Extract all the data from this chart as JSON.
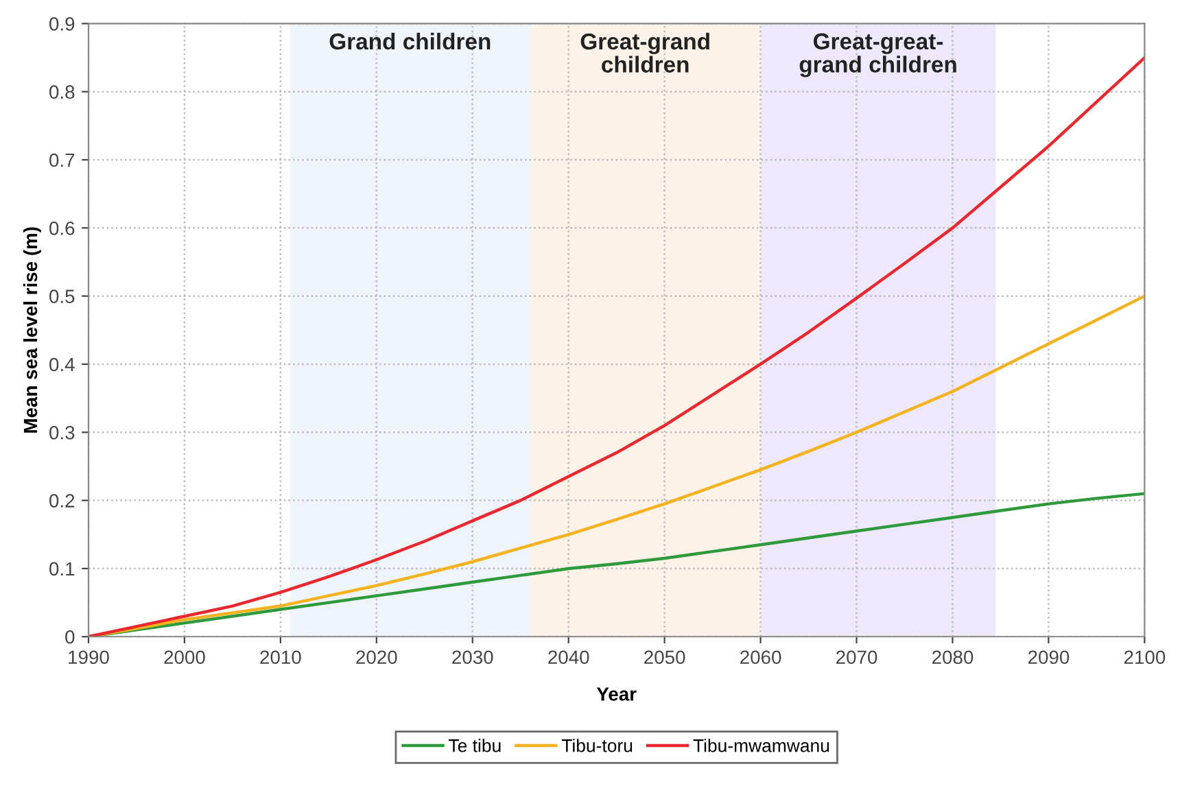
{
  "chart_data": {
    "type": "line",
    "xlabel": "Year",
    "ylabel": "Mean sea level rise (m)",
    "x": [
      1990,
      1995,
      2000,
      2005,
      2010,
      2015,
      2020,
      2025,
      2030,
      2035,
      2040,
      2045,
      2050,
      2055,
      2060,
      2065,
      2070,
      2075,
      2080,
      2085,
      2090,
      2095,
      2100
    ],
    "series": [
      {
        "name": "Te tibu",
        "color": "#2e9a3c",
        "values": [
          0,
          0.01,
          0.02,
          0.03,
          0.04,
          0.05,
          0.06,
          0.07,
          0.08,
          0.09,
          0.1,
          0.107,
          0.115,
          0.125,
          0.135,
          0.145,
          0.155,
          0.165,
          0.175,
          0.185,
          0.195,
          0.203,
          0.21
        ]
      },
      {
        "name": "Tibu-toru",
        "color": "#f5b21f",
        "values": [
          0,
          0.012,
          0.025,
          0.035,
          0.045,
          0.06,
          0.075,
          0.092,
          0.11,
          0.13,
          0.15,
          0.172,
          0.195,
          0.22,
          0.245,
          0.272,
          0.3,
          0.33,
          0.36,
          0.395,
          0.43,
          0.465,
          0.5
        ]
      },
      {
        "name": "Tibu-mwamwanu",
        "color": "#e8282e",
        "values": [
          0,
          0.015,
          0.03,
          0.045,
          0.065,
          0.088,
          0.113,
          0.14,
          0.17,
          0.2,
          0.235,
          0.27,
          0.31,
          0.355,
          0.4,
          0.447,
          0.497,
          0.548,
          0.6,
          0.66,
          0.72,
          0.785,
          0.85
        ]
      }
    ],
    "xlim": [
      1990,
      2100
    ],
    "xticks": [
      1990,
      2000,
      2010,
      2020,
      2030,
      2040,
      2050,
      2060,
      2070,
      2080,
      2090,
      2100
    ],
    "ylim": [
      0,
      0.9
    ],
    "yticks": [
      0,
      0.1,
      0.2,
      0.3,
      0.4,
      0.5,
      0.6,
      0.7,
      0.8,
      0.9
    ],
    "bands": [
      {
        "axis": "x",
        "from": 2011,
        "to": 2036,
        "label": "Grand children",
        "color": "#eef4f9"
      },
      {
        "axis": "x",
        "from": 2036,
        "to": 2060,
        "label": "Great-grand\nchildren",
        "color": "#fdf2e7"
      },
      {
        "axis": "x",
        "from": 2060,
        "to": 2084.5,
        "label": "Great-great-\ngrand children",
        "color": "#eee8fc"
      }
    ],
    "grid": true,
    "legend": "bottom",
    "line_style": "solid",
    "marker": "none"
  }
}
